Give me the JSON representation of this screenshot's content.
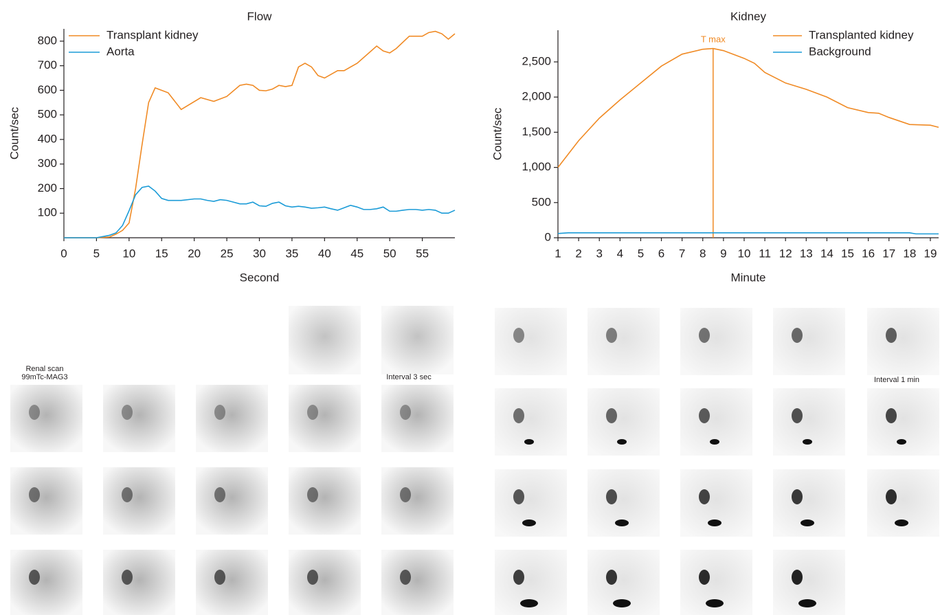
{
  "chart_data": [
    {
      "type": "line",
      "title": "Flow",
      "x_label": "Second",
      "y_label": "Count/sec",
      "legend": "upper-left",
      "xlim": [
        0,
        60
      ],
      "ylim": [
        0,
        850
      ],
      "xticks": [
        0,
        5,
        10,
        15,
        20,
        25,
        30,
        35,
        40,
        45,
        50,
        55
      ],
      "yticks": [
        100,
        200,
        300,
        400,
        500,
        600,
        700,
        800
      ],
      "series": [
        {
          "name": "Transplant kidney",
          "color": "#f08a24",
          "x": [
            0,
            5,
            7,
            8,
            9,
            10,
            11,
            12,
            13,
            14,
            16,
            18,
            21,
            23,
            25,
            27,
            28,
            29,
            30,
            31,
            32,
            33,
            34,
            35,
            36,
            37,
            38,
            39,
            40,
            42,
            43,
            45,
            48,
            49,
            50,
            51,
            53,
            55,
            56,
            57,
            58,
            59,
            60
          ],
          "values": [
            0,
            0,
            3,
            15,
            30,
            60,
            200,
            380,
            550,
            610,
            590,
            522,
            570,
            555,
            575,
            620,
            625,
            620,
            600,
            598,
            605,
            620,
            615,
            620,
            695,
            710,
            695,
            660,
            650,
            680,
            680,
            710,
            780,
            760,
            752,
            770,
            820,
            820,
            835,
            840,
            830,
            808,
            830
          ]
        },
        {
          "name": "Aorta",
          "color": "#1a9bd7",
          "x": [
            0,
            5,
            7,
            8,
            9,
            10,
            11,
            12,
            13,
            14,
            15,
            16,
            18,
            20,
            21,
            22,
            23,
            24,
            25,
            26,
            27,
            28,
            29,
            30,
            31,
            32,
            33,
            34,
            35,
            36,
            37,
            38,
            39,
            40,
            41,
            42,
            43,
            44,
            45,
            46,
            47,
            48,
            49,
            50,
            51,
            52,
            53,
            54,
            55,
            56,
            57,
            58,
            59,
            60
          ],
          "values": [
            0,
            0,
            10,
            20,
            50,
            110,
            175,
            205,
            210,
            190,
            160,
            152,
            152,
            158,
            158,
            152,
            148,
            155,
            152,
            145,
            138,
            138,
            145,
            130,
            128,
            140,
            145,
            130,
            125,
            128,
            125,
            120,
            122,
            125,
            118,
            112,
            122,
            132,
            125,
            115,
            115,
            118,
            125,
            108,
            108,
            112,
            115,
            115,
            112,
            115,
            112,
            100,
            100,
            112
          ]
        }
      ]
    },
    {
      "type": "line",
      "title": "Kidney",
      "x_label": "Minute",
      "y_label": "Count/sec",
      "legend": "upper-right",
      "xlim": [
        1,
        19.4
      ],
      "ylim": [
        0,
        2950
      ],
      "xticks": [
        1,
        2,
        3,
        4,
        5,
        6,
        7,
        8,
        9,
        10,
        11,
        12,
        13,
        14,
        15,
        16,
        17,
        18,
        19
      ],
      "yticks": [
        0,
        500,
        {
          "value": 1000,
          "label": "1,000"
        },
        {
          "value": 1500,
          "label": "1,500"
        },
        {
          "value": 2000,
          "label": "2,000"
        },
        {
          "value": 2500,
          "label": "2,500"
        }
      ],
      "annotations": [
        {
          "text": "T max",
          "x": 8.5,
          "y": 2690
        }
      ],
      "series": [
        {
          "name": "Transplanted kidney",
          "color": "#f08a24",
          "x": [
            1,
            2,
            3,
            4,
            5,
            6,
            7,
            8,
            8.5,
            9,
            10,
            10.5,
            11,
            12,
            13,
            14,
            15,
            16,
            16.5,
            17,
            18,
            19,
            19.4
          ],
          "values": [
            1000,
            1380,
            1700,
            1960,
            2200,
            2440,
            2610,
            2680,
            2690,
            2660,
            2550,
            2480,
            2350,
            2200,
            2110,
            2000,
            1850,
            1780,
            1770,
            1710,
            1610,
            1600,
            1570
          ]
        },
        {
          "name": "Background",
          "color": "#1a9bd7",
          "x": [
            1,
            1.5,
            18,
            18.3,
            19.4
          ],
          "values": [
            60,
            70,
            70,
            55,
            55
          ]
        }
      ]
    }
  ],
  "image_panels": {
    "flow_label_1": "Renal scan",
    "flow_label_2": "99mTc-MAG3",
    "flow_interval": "Interval 3 sec",
    "kidney_interval": "Interval 1 min"
  }
}
